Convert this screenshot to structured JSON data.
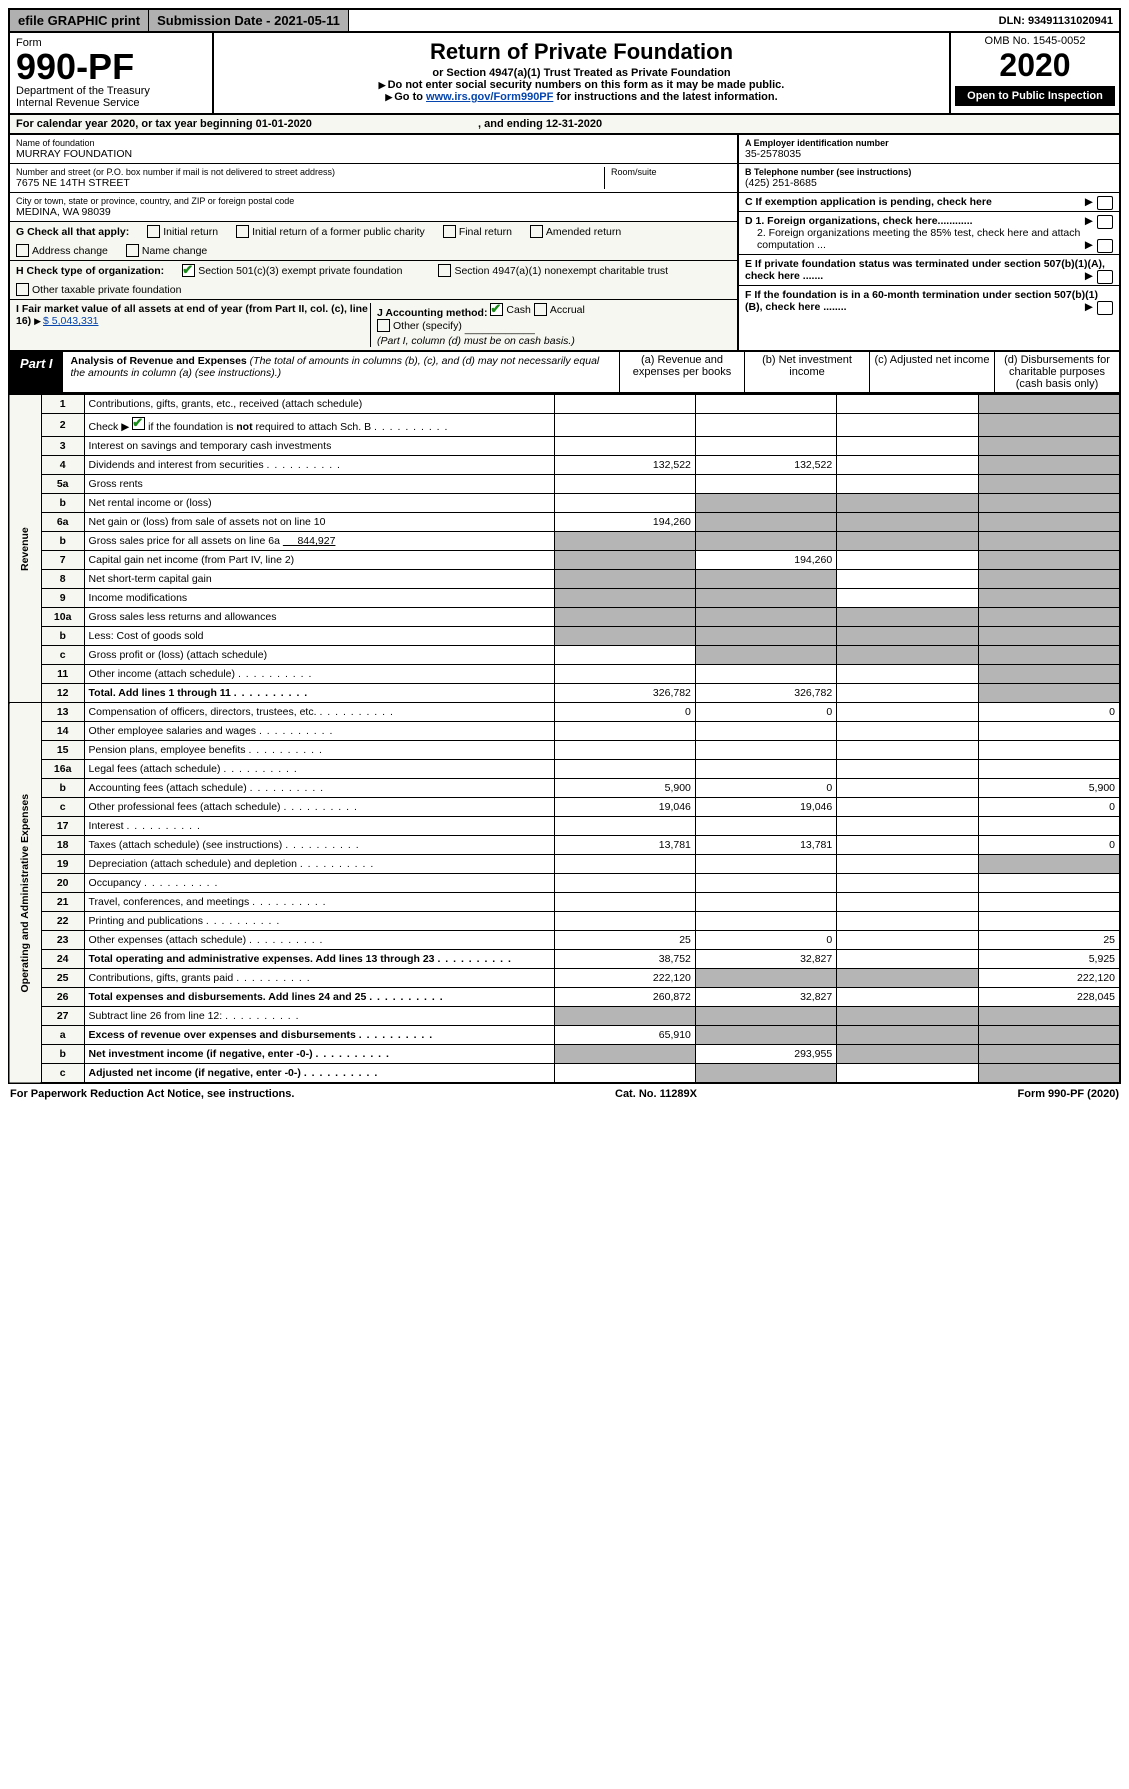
{
  "topbar": {
    "efile": "efile GRAPHIC print",
    "submission_label": "Submission Date - 2021-05-11",
    "dln": "DLN: 93491131020941"
  },
  "header": {
    "form_word": "Form",
    "form_no": "990-PF",
    "dept": "Department of the Treasury",
    "irs": "Internal Revenue Service",
    "title": "Return of Private Foundation",
    "subtitle": "or Section 4947(a)(1) Trust Treated as Private Foundation",
    "warn": "Do not enter social security numbers on this form as it may be made public.",
    "goto_pre": "Go to ",
    "goto_link": "www.irs.gov/Form990PF",
    "goto_post": " for instructions and the latest information.",
    "omb": "OMB No. 1545-0052",
    "year": "2020",
    "open": "Open to Public Inspection"
  },
  "cal": {
    "text_a": "For calendar year 2020, or tax year beginning 01-01-2020",
    "text_b": ", and ending 12-31-2020"
  },
  "info": {
    "name_label": "Name of foundation",
    "name": "MURRAY FOUNDATION",
    "addr_label": "Number and street (or P.O. box number if mail is not delivered to street address)",
    "room_label": "Room/suite",
    "addr": "7675 NE 14TH STREET",
    "city_label": "City or town, state or province, country, and ZIP or foreign postal code",
    "city": "MEDINA, WA  98039",
    "A_label": "A Employer identification number",
    "A_val": "35-2578035",
    "B_label": "B Telephone number (see instructions)",
    "B_val": "(425) 251-8685",
    "C_label": "C If exemption application is pending, check here",
    "D1": "D 1. Foreign organizations, check here............",
    "D2": "2. Foreign organizations meeting the 85% test, check here and attach computation ...",
    "E": "E  If private foundation status was terminated under section 507(b)(1)(A), check here .......",
    "F": "F  If the foundation is in a 60-month termination under section 507(b)(1)(B), check here ........",
    "G_label": "G Check all that apply:",
    "G_opts": [
      "Initial return",
      "Initial return of a former public charity",
      "Final return",
      "Amended return",
      "Address change",
      "Name change"
    ],
    "H_label": "H Check type of organization:",
    "H_opts": [
      "Section 501(c)(3) exempt private foundation",
      "Section 4947(a)(1) nonexempt charitable trust",
      "Other taxable private foundation"
    ],
    "I_label": "I Fair market value of all assets at end of year (from Part II, col. (c), line 16)",
    "I_val": "$  5,043,331",
    "J_label": "J Accounting method:",
    "J_opts": [
      "Cash",
      "Accrual",
      "Other (specify)"
    ],
    "J_note": "(Part I, column (d) must be on cash basis.)"
  },
  "part1": {
    "tab": "Part I",
    "title": "Analysis of Revenue and Expenses",
    "note": "(The total of amounts in columns (b), (c), and (d) may not necessarily equal the amounts in column (a) (see instructions).)",
    "cols": {
      "a": "(a)   Revenue and expenses per books",
      "b": "(b)  Net investment income",
      "c": "(c)  Adjusted net income",
      "d": "(d)  Disbursements for charitable purposes (cash basis only)"
    }
  },
  "side_labels": {
    "rev": "Revenue",
    "exp": "Operating and Administrative Expenses"
  },
  "rows": [
    {
      "n": "1",
      "d": "Contributions, gifts, grants, etc., received (attach schedule)"
    },
    {
      "n": "2",
      "d": "Check ▶ ☑ if the foundation is not required to attach Sch. B",
      "chk": true
    },
    {
      "n": "3",
      "d": "Interest on savings and temporary cash investments"
    },
    {
      "n": "4",
      "d": "Dividends and interest from securities",
      "a": "132,522",
      "b": "132,522"
    },
    {
      "n": "5a",
      "d": "Gross rents"
    },
    {
      "n": "b",
      "d": "Net rental income or (loss)",
      "grey_bcd": true
    },
    {
      "n": "6a",
      "d": "Net gain or (loss) from sale of assets not on line 10",
      "a": "194,260",
      "grey_bcd": true
    },
    {
      "n": "b",
      "d": "Gross sales price for all assets on line 6a",
      "inline": "844,927",
      "grey_all": true
    },
    {
      "n": "7",
      "d": "Capital gain net income (from Part IV, line 2)",
      "b": "194,260",
      "grey_a": true
    },
    {
      "n": "8",
      "d": "Net short-term capital gain",
      "grey_ab": true
    },
    {
      "n": "9",
      "d": "Income modifications",
      "grey_ab": true
    },
    {
      "n": "10a",
      "d": "Gross sales less returns and allowances",
      "grey_all": true
    },
    {
      "n": "b",
      "d": "Less: Cost of goods sold",
      "grey_all": true
    },
    {
      "n": "c",
      "d": "Gross profit or (loss) (attach schedule)",
      "grey_bc": true
    },
    {
      "n": "11",
      "d": "Other income (attach schedule)"
    },
    {
      "n": "12",
      "d": "Total. Add lines 1 through 11",
      "b2": true,
      "a": "326,782",
      "b": "326,782"
    }
  ],
  "exp_rows": [
    {
      "n": "13",
      "d": "Compensation of officers, directors, trustees, etc.",
      "a": "0",
      "b": "0",
      "dd": "0"
    },
    {
      "n": "14",
      "d": "Other employee salaries and wages"
    },
    {
      "n": "15",
      "d": "Pension plans, employee benefits"
    },
    {
      "n": "16a",
      "d": "Legal fees (attach schedule)"
    },
    {
      "n": "b",
      "d": "Accounting fees (attach schedule)",
      "a": "5,900",
      "b": "0",
      "dd": "5,900"
    },
    {
      "n": "c",
      "d": "Other professional fees (attach schedule)",
      "a": "19,046",
      "b": "19,046",
      "dd": "0"
    },
    {
      "n": "17",
      "d": "Interest"
    },
    {
      "n": "18",
      "d": "Taxes (attach schedule) (see instructions)",
      "a": "13,781",
      "b": "13,781",
      "dd": "0"
    },
    {
      "n": "19",
      "d": "Depreciation (attach schedule) and depletion",
      "grey_d": true
    },
    {
      "n": "20",
      "d": "Occupancy"
    },
    {
      "n": "21",
      "d": "Travel, conferences, and meetings"
    },
    {
      "n": "22",
      "d": "Printing and publications"
    },
    {
      "n": "23",
      "d": "Other expenses (attach schedule)",
      "a": "25",
      "b": "0",
      "dd": "25"
    },
    {
      "n": "24",
      "d": "Total operating and administrative expenses. Add lines 13 through 23",
      "b2": true,
      "a": "38,752",
      "b": "32,827",
      "dd": "5,925"
    },
    {
      "n": "25",
      "d": "Contributions, gifts, grants paid",
      "a": "222,120",
      "dd": "222,120",
      "grey_bc": true
    },
    {
      "n": "26",
      "d": "Total expenses and disbursements. Add lines 24 and 25",
      "b2": true,
      "a": "260,872",
      "b": "32,827",
      "dd": "228,045"
    },
    {
      "n": "27",
      "d": "Subtract line 26 from line 12:",
      "grey_all": true
    },
    {
      "n": "a",
      "d": "Excess of revenue over expenses and disbursements",
      "b2": true,
      "a": "65,910",
      "grey_bcd": true
    },
    {
      "n": "b",
      "d": "Net investment income (if negative, enter -0-)",
      "b2": true,
      "b": "293,955",
      "grey_acd": true
    },
    {
      "n": "c",
      "d": "Adjusted net income (if negative, enter -0-)",
      "b2": true,
      "grey_abd": true
    }
  ],
  "footer": {
    "left": "For Paperwork Reduction Act Notice, see instructions.",
    "mid": "Cat. No. 11289X",
    "right": "Form 990-PF (2020)"
  }
}
